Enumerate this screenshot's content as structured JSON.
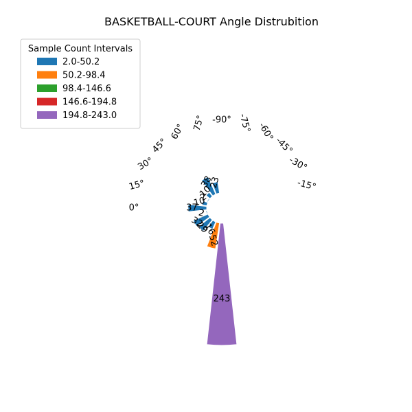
{
  "chart_data": {
    "type": "polar-bar",
    "title": "BASKETBALL-COURT Angle Distrubition",
    "legend": {
      "title": "Sample Count Intervals",
      "placement": "top-left",
      "entries": [
        {
          "label": "2.0-50.2",
          "color": "#1f77b4"
        },
        {
          "label": "50.2-98.4",
          "color": "#ff7f0e"
        },
        {
          "label": "98.4-146.6",
          "color": "#2ca02c"
        },
        {
          "label": "146.6-194.8",
          "color": "#d62728"
        },
        {
          "label": "194.8-243.0",
          "color": "#9467bd"
        }
      ]
    },
    "angle_tick_labels": [
      "0°",
      "15°",
      "30°",
      "45°",
      "60°",
      "75°",
      "-90°",
      "-75°",
      "-60°",
      "-45°",
      "-30°",
      "-15°"
    ],
    "bars": [
      {
        "angle": -90,
        "value": 243,
        "color": "#9467bd"
      },
      {
        "angle": -75,
        "value": 52,
        "color": "#ff7f0e"
      },
      {
        "angle": -60,
        "value": 16,
        "color": "#1f77b4"
      },
      {
        "angle": -45,
        "value": 29,
        "color": "#1f77b4"
      },
      {
        "angle": -30,
        "value": 32,
        "color": "#1f77b4"
      },
      {
        "angle": -15,
        "value": 2,
        "color": "#1f77b4"
      },
      {
        "angle": 0,
        "value": 37,
        "color": "#1f77b4"
      },
      {
        "angle": 15,
        "value": 10,
        "color": "#1f77b4"
      },
      {
        "angle": 30,
        "value": 2,
        "color": "#1f77b4"
      },
      {
        "angle": 45,
        "value": 10,
        "color": "#1f77b4"
      },
      {
        "angle": 60,
        "value": 38,
        "color": "#1f77b4"
      },
      {
        "angle": 75,
        "value": 23,
        "color": "#1f77b4"
      }
    ]
  }
}
